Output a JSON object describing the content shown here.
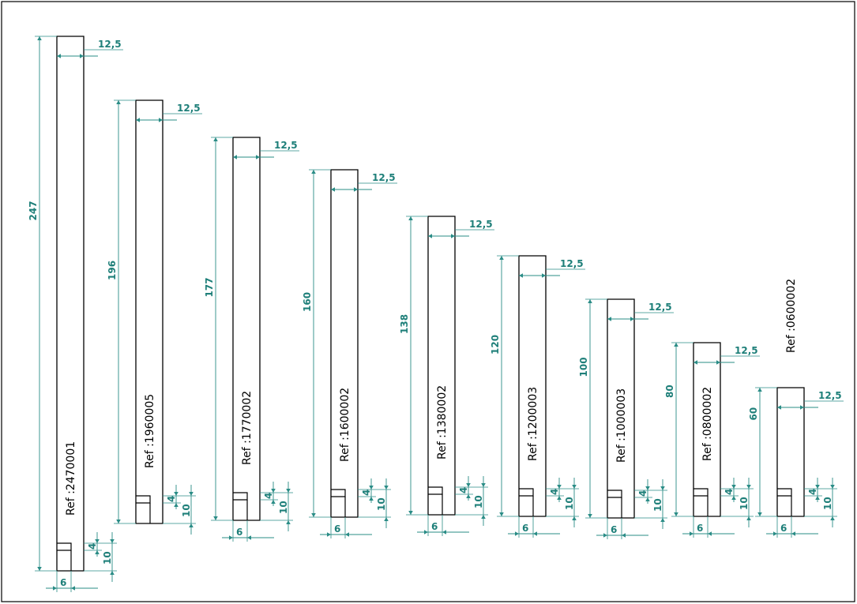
{
  "drawing": {
    "accent_color": "#2a8c86",
    "parts": [
      {
        "ref": "Ref :2470001",
        "height": "247",
        "width": "12,5",
        "slot_offset": "4",
        "slot_height": "10",
        "slot_width": "6"
      },
      {
        "ref": "Ref :1960005",
        "height": "196",
        "width": "12,5",
        "slot_offset": "4",
        "slot_height": "10",
        "slot_width": ""
      },
      {
        "ref": "Ref :1770002",
        "height": "177",
        "width": "12,5",
        "slot_offset": "4",
        "slot_height": "10",
        "slot_width": "6"
      },
      {
        "ref": "Ref :1600002",
        "height": "160",
        "width": "12,5",
        "slot_offset": "4",
        "slot_height": "10",
        "slot_width": "6"
      },
      {
        "ref": "Ref :1380002",
        "height": "138",
        "width": "12,5",
        "slot_offset": "4",
        "slot_height": "10",
        "slot_width": "6"
      },
      {
        "ref": "Ref :1200003",
        "height": "120",
        "width": "12,5",
        "slot_offset": "4",
        "slot_height": "10",
        "slot_width": "6"
      },
      {
        "ref": "Ref :1000003",
        "height": "100",
        "width": "12,5",
        "slot_offset": "4",
        "slot_height": "10",
        "slot_width": "6"
      },
      {
        "ref": "Ref :0800002",
        "height": "80",
        "width": "12,5",
        "slot_offset": "4",
        "slot_height": "10",
        "slot_width": "6"
      },
      {
        "ref": "Ref :0600002",
        "height": "60",
        "width": "12,5",
        "slot_offset": "4",
        "slot_height": "10",
        "slot_width": "6"
      }
    ]
  }
}
